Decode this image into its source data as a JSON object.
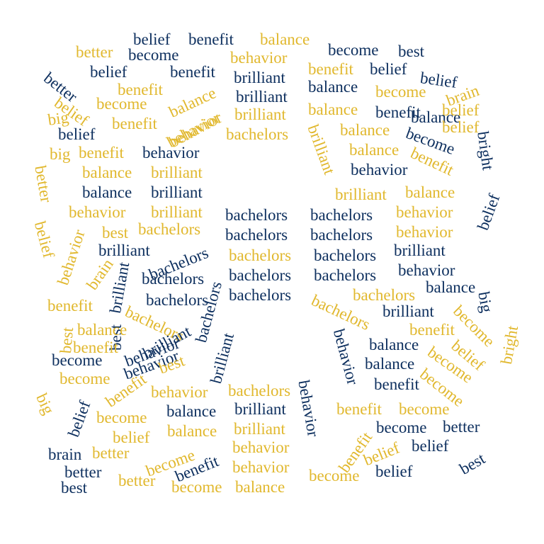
{
  "colors": {
    "navy": "#0d2f5e",
    "gold": "#e1b82e",
    "background": "#ffffff"
  },
  "words": [
    "belief",
    "benefit",
    "balance",
    "better",
    "become",
    "behavior",
    "become",
    "best",
    "better",
    "belief",
    "benefit",
    "brilliant",
    "benefit",
    "belief",
    "belief",
    "benefit",
    "balance",
    "brilliant",
    "balance",
    "become",
    "brain",
    "belief",
    "become",
    "balance",
    "behavior",
    "brilliant",
    "balance",
    "benefit",
    "belief",
    "big",
    "benefit",
    "behavior",
    "belief",
    "belief",
    "bachelors",
    "brilliant",
    "balance",
    "become",
    "big",
    "benefit",
    "behavior",
    "balance",
    "benefit",
    "bright",
    "balance",
    "brilliant",
    "behavior",
    "better",
    "balance",
    "brilliant",
    "brilliant",
    "balance",
    "behavior",
    "brilliant",
    "bachelors",
    "bachelors",
    "behavior",
    "belief",
    "belief",
    "best",
    "bachelors",
    "bachelors",
    "bachelors",
    "behavior",
    "behavior",
    "brilliant",
    "bachelors",
    "bachelors",
    "bachelors",
    "brilliant",
    "brain",
    "bachelors",
    "bachelors",
    "bachelors",
    "behavior",
    "brilliant",
    "bachelors",
    "bachelors",
    "bachelors",
    "balance",
    "bachelors",
    "bachelors",
    "brilliant",
    "big",
    "benefit",
    "best",
    "bachelors",
    "behavior",
    "become",
    "best",
    "balance",
    "brilliant",
    "benefit",
    "benefit",
    "brilliant",
    "balance",
    "behavior",
    "belief",
    "become",
    "behavior",
    "best",
    "balance",
    "become",
    "bright",
    "become",
    "benefit",
    "benefit",
    "big",
    "behavior",
    "bachelors",
    "behavior",
    "become",
    "belief",
    "become",
    "balance",
    "brilliant",
    "benefit",
    "become",
    "belief",
    "balance",
    "brilliant",
    "become",
    "better",
    "brain",
    "better",
    "become",
    "benefit",
    "behavior",
    "benefit",
    "belief",
    "belief",
    "best",
    "better",
    "behavior",
    "become",
    "belief",
    "best",
    "better",
    "become",
    "balance"
  ]
}
